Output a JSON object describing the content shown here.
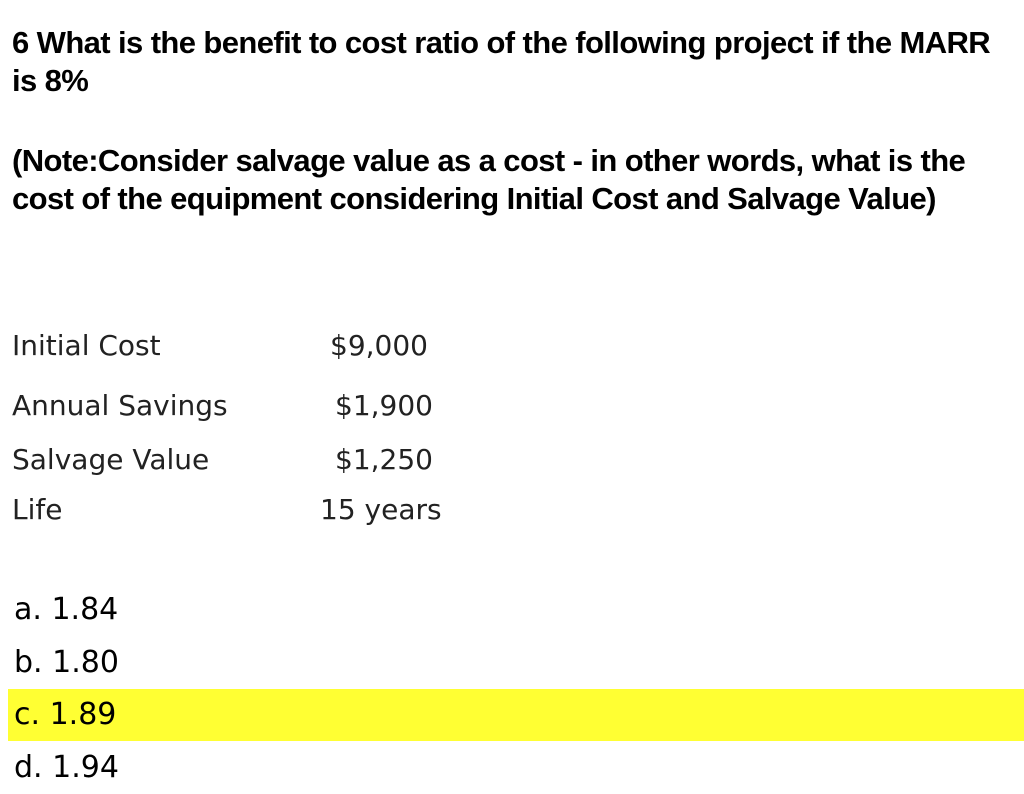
{
  "question": {
    "text": "6 What is the benefit to cost ratio of the following project if the MARR is 8%",
    "note": "(Note:Consider salvage value as a cost - in other words, what is the cost of the equipment considering Initial Cost and Salvage Value)"
  },
  "data_table": [
    {
      "label": "Initial Cost",
      "value": "$9,000"
    },
    {
      "label": "Annual Savings",
      "value": "$1,900"
    },
    {
      "label": "Salvage Value",
      "value": "$1,250"
    },
    {
      "label": "Life",
      "value": "15 years"
    }
  ],
  "options": [
    {
      "text": "a. 1.84",
      "highlighted": false
    },
    {
      "text": "b. 1.80",
      "highlighted": false
    },
    {
      "text": "c. 1.89",
      "highlighted": true
    },
    {
      "text": "d. 1.94",
      "highlighted": false
    }
  ],
  "colors": {
    "highlight": "#ffff33"
  }
}
